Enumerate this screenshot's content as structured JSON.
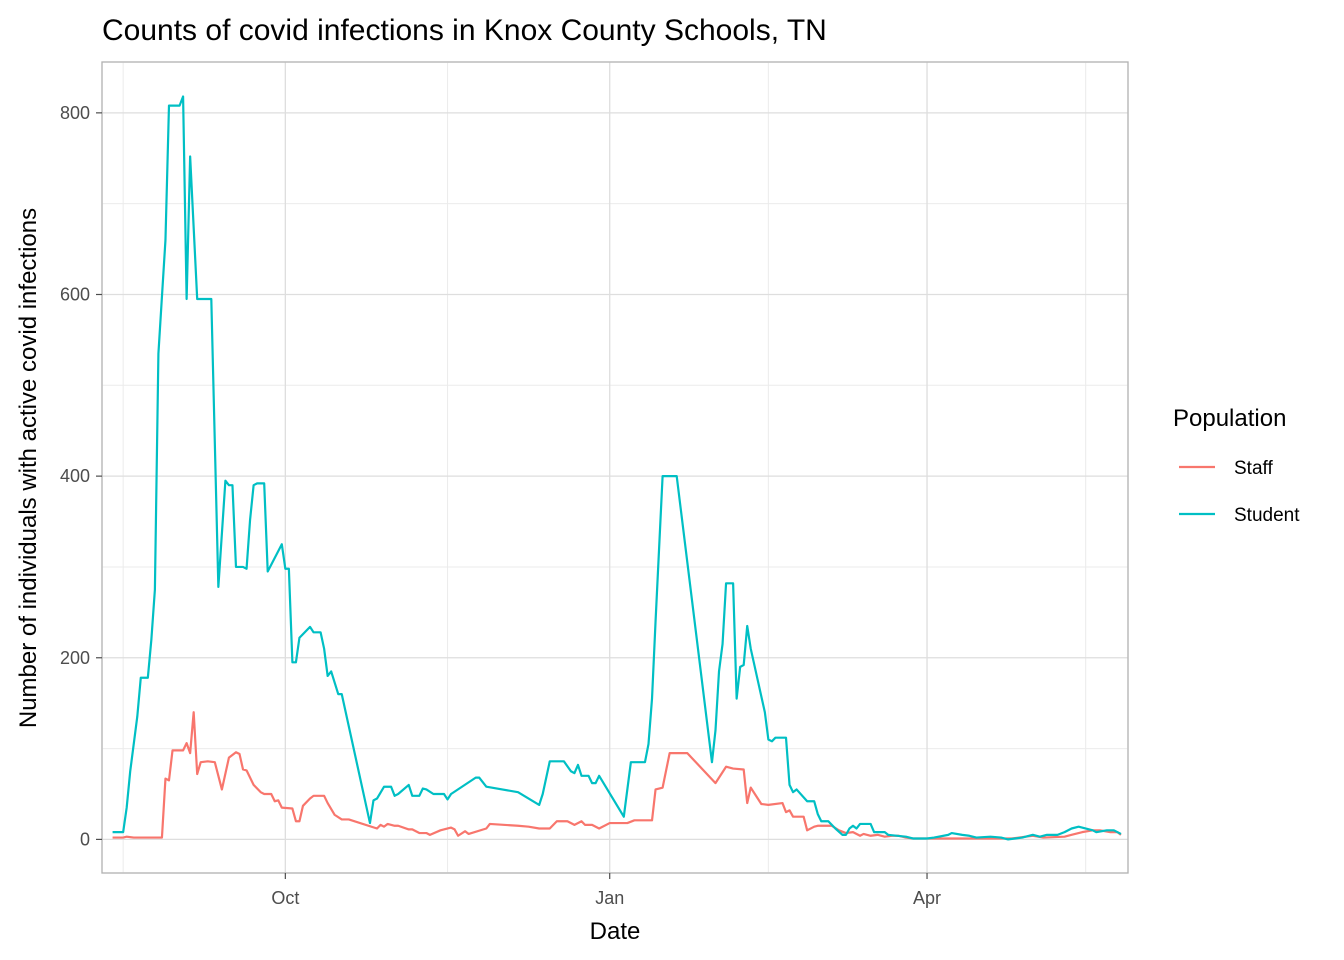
{
  "chart_data": {
    "type": "line",
    "title": "Counts of covid infections in Knox County Schools, TN",
    "xlabel": "Date",
    "ylabel": "Number of individuals with active covid infections",
    "x_range": [
      "2021-08-10",
      "2022-05-28"
    ],
    "ylim": [
      -37,
      856
    ],
    "x_ticks": [
      {
        "date": "2021-10-01",
        "label": "Oct"
      },
      {
        "date": "2022-01-01",
        "label": "Jan"
      },
      {
        "date": "2022-04-01",
        "label": "Apr"
      }
    ],
    "x_minor_ticks": [
      "2021-08-16",
      "2021-11-16",
      "2022-02-15",
      "2022-05-16"
    ],
    "y_ticks": [
      0,
      200,
      400,
      600,
      800
    ],
    "y_minor_ticks": [
      100,
      300,
      500,
      700
    ],
    "grid": true,
    "legend": {
      "title": "Population",
      "position": "right"
    },
    "series": [
      {
        "name": "Staff",
        "color": "#F8766D",
        "points": [
          [
            "2021-08-13",
            2
          ],
          [
            "2021-08-16",
            2
          ],
          [
            "2021-08-17",
            3
          ],
          [
            "2021-08-19",
            2
          ],
          [
            "2021-08-20",
            2
          ],
          [
            "2021-08-24",
            2
          ],
          [
            "2021-08-27",
            2
          ],
          [
            "2021-08-28",
            67
          ],
          [
            "2021-08-29",
            65
          ],
          [
            "2021-08-30",
            98
          ],
          [
            "2021-09-01",
            98
          ],
          [
            "2021-09-02",
            98
          ],
          [
            "2021-09-03",
            106
          ],
          [
            "2021-09-04",
            95
          ],
          [
            "2021-09-05",
            140
          ],
          [
            "2021-09-06",
            72
          ],
          [
            "2021-09-07",
            85
          ],
          [
            "2021-09-09",
            86
          ],
          [
            "2021-09-11",
            85
          ],
          [
            "2021-09-13",
            55
          ],
          [
            "2021-09-15",
            90
          ],
          [
            "2021-09-17",
            96
          ],
          [
            "2021-09-18",
            94
          ],
          [
            "2021-09-19",
            77
          ],
          [
            "2021-09-20",
            76
          ],
          [
            "2021-09-22",
            60
          ],
          [
            "2021-09-24",
            52
          ],
          [
            "2021-09-25",
            50
          ],
          [
            "2021-09-27",
            50
          ],
          [
            "2021-09-28",
            42
          ],
          [
            "2021-09-29",
            43
          ],
          [
            "2021-09-30",
            35
          ],
          [
            "2021-10-03",
            34
          ],
          [
            "2021-10-04",
            20
          ],
          [
            "2021-10-05",
            20
          ],
          [
            "2021-10-06",
            37
          ],
          [
            "2021-10-08",
            45
          ],
          [
            "2021-10-09",
            48
          ],
          [
            "2021-10-12",
            48
          ],
          [
            "2021-10-13",
            40
          ],
          [
            "2021-10-15",
            27
          ],
          [
            "2021-10-17",
            22
          ],
          [
            "2021-10-19",
            22
          ],
          [
            "2021-10-27",
            12
          ],
          [
            "2021-10-28",
            16
          ],
          [
            "2021-10-29",
            14
          ],
          [
            "2021-10-30",
            17
          ],
          [
            "2021-11-01",
            15
          ],
          [
            "2021-11-02",
            15
          ],
          [
            "2021-11-05",
            11
          ],
          [
            "2021-11-06",
            11
          ],
          [
            "2021-11-08",
            7
          ],
          [
            "2021-11-10",
            7
          ],
          [
            "2021-11-11",
            5
          ],
          [
            "2021-11-14",
            10
          ],
          [
            "2021-11-17",
            13
          ],
          [
            "2021-11-18",
            11
          ],
          [
            "2021-11-19",
            4
          ],
          [
            "2021-11-21",
            9
          ],
          [
            "2021-11-22",
            6
          ],
          [
            "2021-11-27",
            12
          ],
          [
            "2021-11-28",
            17
          ],
          [
            "2021-12-06",
            15
          ],
          [
            "2021-12-09",
            14
          ],
          [
            "2021-12-12",
            12
          ],
          [
            "2021-12-15",
            12
          ],
          [
            "2021-12-17",
            20
          ],
          [
            "2021-12-20",
            20
          ],
          [
            "2021-12-22",
            16
          ],
          [
            "2021-12-24",
            20
          ],
          [
            "2021-12-25",
            16
          ],
          [
            "2021-12-27",
            16
          ],
          [
            "2021-12-29",
            12
          ],
          [
            "2022-01-01",
            18
          ],
          [
            "2022-01-06",
            18
          ],
          [
            "2022-01-08",
            21
          ],
          [
            "2022-01-13",
            21
          ],
          [
            "2022-01-14",
            55
          ],
          [
            "2022-01-16",
            57
          ],
          [
            "2022-01-18",
            95
          ],
          [
            "2022-01-23",
            95
          ],
          [
            "2022-01-31",
            62
          ],
          [
            "2022-02-03",
            80
          ],
          [
            "2022-02-05",
            78
          ],
          [
            "2022-02-08",
            77
          ],
          [
            "2022-02-09",
            40
          ],
          [
            "2022-02-10",
            57
          ],
          [
            "2022-02-13",
            39
          ],
          [
            "2022-02-15",
            38
          ],
          [
            "2022-02-19",
            40
          ],
          [
            "2022-02-20",
            30
          ],
          [
            "2022-02-21",
            32
          ],
          [
            "2022-02-22",
            25
          ],
          [
            "2022-02-25",
            25
          ],
          [
            "2022-02-26",
            10
          ],
          [
            "2022-02-28",
            14
          ],
          [
            "2022-03-01",
            15
          ],
          [
            "2022-03-05",
            15
          ],
          [
            "2022-03-07",
            10
          ],
          [
            "2022-03-09",
            7
          ],
          [
            "2022-03-11",
            8
          ],
          [
            "2022-03-13",
            4
          ],
          [
            "2022-03-14",
            6
          ],
          [
            "2022-03-16",
            4
          ],
          [
            "2022-03-18",
            5
          ],
          [
            "2022-03-20",
            3
          ],
          [
            "2022-03-22",
            4
          ],
          [
            "2022-03-24",
            4
          ],
          [
            "2022-03-26",
            2
          ],
          [
            "2022-03-28",
            1
          ],
          [
            "2022-04-01",
            1
          ],
          [
            "2022-04-10",
            1
          ],
          [
            "2022-04-15",
            1
          ],
          [
            "2022-04-25",
            1
          ],
          [
            "2022-05-01",
            4
          ],
          [
            "2022-05-04",
            2
          ],
          [
            "2022-05-10",
            3
          ],
          [
            "2022-05-12",
            5
          ],
          [
            "2022-05-15",
            8
          ],
          [
            "2022-05-18",
            10
          ],
          [
            "2022-05-20",
            10
          ],
          [
            "2022-05-23",
            8
          ],
          [
            "2022-05-25",
            8
          ],
          [
            "2022-05-26",
            5
          ]
        ]
      },
      {
        "name": "Student",
        "color": "#00BFC4",
        "points": [
          [
            "2021-08-13",
            8
          ],
          [
            "2021-08-16",
            8
          ],
          [
            "2021-08-17",
            35
          ],
          [
            "2021-08-18",
            75
          ],
          [
            "2021-08-20",
            135
          ],
          [
            "2021-08-21",
            178
          ],
          [
            "2021-08-23",
            178
          ],
          [
            "2021-08-24",
            220
          ],
          [
            "2021-08-25",
            275
          ],
          [
            "2021-08-26",
            535
          ],
          [
            "2021-08-28",
            660
          ],
          [
            "2021-08-29",
            808
          ],
          [
            "2021-09-01",
            808
          ],
          [
            "2021-09-02",
            818
          ],
          [
            "2021-09-03",
            595
          ],
          [
            "2021-09-04",
            752
          ],
          [
            "2021-09-06",
            595
          ],
          [
            "2021-09-07",
            595
          ],
          [
            "2021-09-10",
            595
          ],
          [
            "2021-09-12",
            278
          ],
          [
            "2021-09-14",
            395
          ],
          [
            "2021-09-15",
            390
          ],
          [
            "2021-09-16",
            390
          ],
          [
            "2021-09-17",
            300
          ],
          [
            "2021-09-19",
            300
          ],
          [
            "2021-09-20",
            298
          ],
          [
            "2021-09-21",
            352
          ],
          [
            "2021-09-22",
            390
          ],
          [
            "2021-09-23",
            392
          ],
          [
            "2021-09-25",
            392
          ],
          [
            "2021-09-26",
            295
          ],
          [
            "2021-09-30",
            325
          ],
          [
            "2021-10-01",
            298
          ],
          [
            "2021-10-02",
            298
          ],
          [
            "2021-10-03",
            195
          ],
          [
            "2021-10-04",
            195
          ],
          [
            "2021-10-05",
            222
          ],
          [
            "2021-10-08",
            234
          ],
          [
            "2021-10-09",
            228
          ],
          [
            "2021-10-11",
            228
          ],
          [
            "2021-10-12",
            210
          ],
          [
            "2021-10-13",
            180
          ],
          [
            "2021-10-14",
            185
          ],
          [
            "2021-10-16",
            160
          ],
          [
            "2021-10-17",
            160
          ],
          [
            "2021-10-25",
            18
          ],
          [
            "2021-10-26",
            43
          ],
          [
            "2021-10-27",
            45
          ],
          [
            "2021-10-29",
            58
          ],
          [
            "2021-10-31",
            58
          ],
          [
            "2021-11-01",
            48
          ],
          [
            "2021-11-02",
            50
          ],
          [
            "2021-11-05",
            60
          ],
          [
            "2021-11-06",
            48
          ],
          [
            "2021-11-08",
            48
          ],
          [
            "2021-11-09",
            56
          ],
          [
            "2021-11-10",
            55
          ],
          [
            "2021-11-12",
            50
          ],
          [
            "2021-11-15",
            50
          ],
          [
            "2021-11-16",
            44
          ],
          [
            "2021-11-17",
            50
          ],
          [
            "2021-11-24",
            68
          ],
          [
            "2021-11-25",
            68
          ],
          [
            "2021-11-27",
            58
          ],
          [
            "2021-12-06",
            52
          ],
          [
            "2021-12-12",
            38
          ],
          [
            "2021-12-13",
            50
          ],
          [
            "2021-12-15",
            86
          ],
          [
            "2021-12-19",
            86
          ],
          [
            "2021-12-21",
            75
          ],
          [
            "2021-12-22",
            73
          ],
          [
            "2021-12-23",
            82
          ],
          [
            "2021-12-24",
            70
          ],
          [
            "2021-12-26",
            70
          ],
          [
            "2021-12-27",
            62
          ],
          [
            "2021-12-28",
            62
          ],
          [
            "2021-12-29",
            70
          ],
          [
            "2022-01-05",
            25
          ],
          [
            "2022-01-07",
            85
          ],
          [
            "2022-01-11",
            85
          ],
          [
            "2022-01-12",
            105
          ],
          [
            "2022-01-13",
            155
          ],
          [
            "2022-01-14",
            240
          ],
          [
            "2022-01-16",
            400
          ],
          [
            "2022-01-20",
            400
          ],
          [
            "2022-01-30",
            85
          ],
          [
            "2022-01-31",
            120
          ],
          [
            "2022-02-01",
            185
          ],
          [
            "2022-02-02",
            215
          ],
          [
            "2022-02-03",
            282
          ],
          [
            "2022-02-05",
            282
          ],
          [
            "2022-02-06",
            155
          ],
          [
            "2022-02-07",
            190
          ],
          [
            "2022-02-08",
            192
          ],
          [
            "2022-02-09",
            235
          ],
          [
            "2022-02-10",
            210
          ],
          [
            "2022-02-14",
            140
          ],
          [
            "2022-02-15",
            110
          ],
          [
            "2022-02-16",
            108
          ],
          [
            "2022-02-17",
            112
          ],
          [
            "2022-02-20",
            112
          ],
          [
            "2022-02-21",
            60
          ],
          [
            "2022-02-22",
            52
          ],
          [
            "2022-02-23",
            55
          ],
          [
            "2022-02-26",
            42
          ],
          [
            "2022-02-28",
            42
          ],
          [
            "2022-03-01",
            28
          ],
          [
            "2022-03-02",
            20
          ],
          [
            "2022-03-04",
            20
          ],
          [
            "2022-03-06",
            12
          ],
          [
            "2022-03-08",
            5
          ],
          [
            "2022-03-09",
            5
          ],
          [
            "2022-03-10",
            12
          ],
          [
            "2022-03-11",
            15
          ],
          [
            "2022-03-12",
            12
          ],
          [
            "2022-03-13",
            17
          ],
          [
            "2022-03-16",
            17
          ],
          [
            "2022-03-17",
            8
          ],
          [
            "2022-03-20",
            8
          ],
          [
            "2022-03-21",
            5
          ],
          [
            "2022-03-26",
            3
          ],
          [
            "2022-03-28",
            1
          ],
          [
            "2022-04-01",
            1
          ],
          [
            "2022-04-03",
            2
          ],
          [
            "2022-04-07",
            5
          ],
          [
            "2022-04-08",
            7
          ],
          [
            "2022-04-11",
            5
          ],
          [
            "2022-04-13",
            4
          ],
          [
            "2022-04-15",
            2
          ],
          [
            "2022-04-19",
            3
          ],
          [
            "2022-04-22",
            2
          ],
          [
            "2022-04-24",
            0
          ],
          [
            "2022-04-28",
            2
          ],
          [
            "2022-05-01",
            5
          ],
          [
            "2022-05-03",
            3
          ],
          [
            "2022-05-05",
            5
          ],
          [
            "2022-05-08",
            5
          ],
          [
            "2022-05-10",
            8
          ],
          [
            "2022-05-12",
            12
          ],
          [
            "2022-05-14",
            14
          ],
          [
            "2022-05-18",
            10
          ],
          [
            "2022-05-19",
            8
          ],
          [
            "2022-05-22",
            10
          ],
          [
            "2022-05-24",
            10
          ],
          [
            "2022-05-26",
            6
          ]
        ]
      }
    ]
  }
}
